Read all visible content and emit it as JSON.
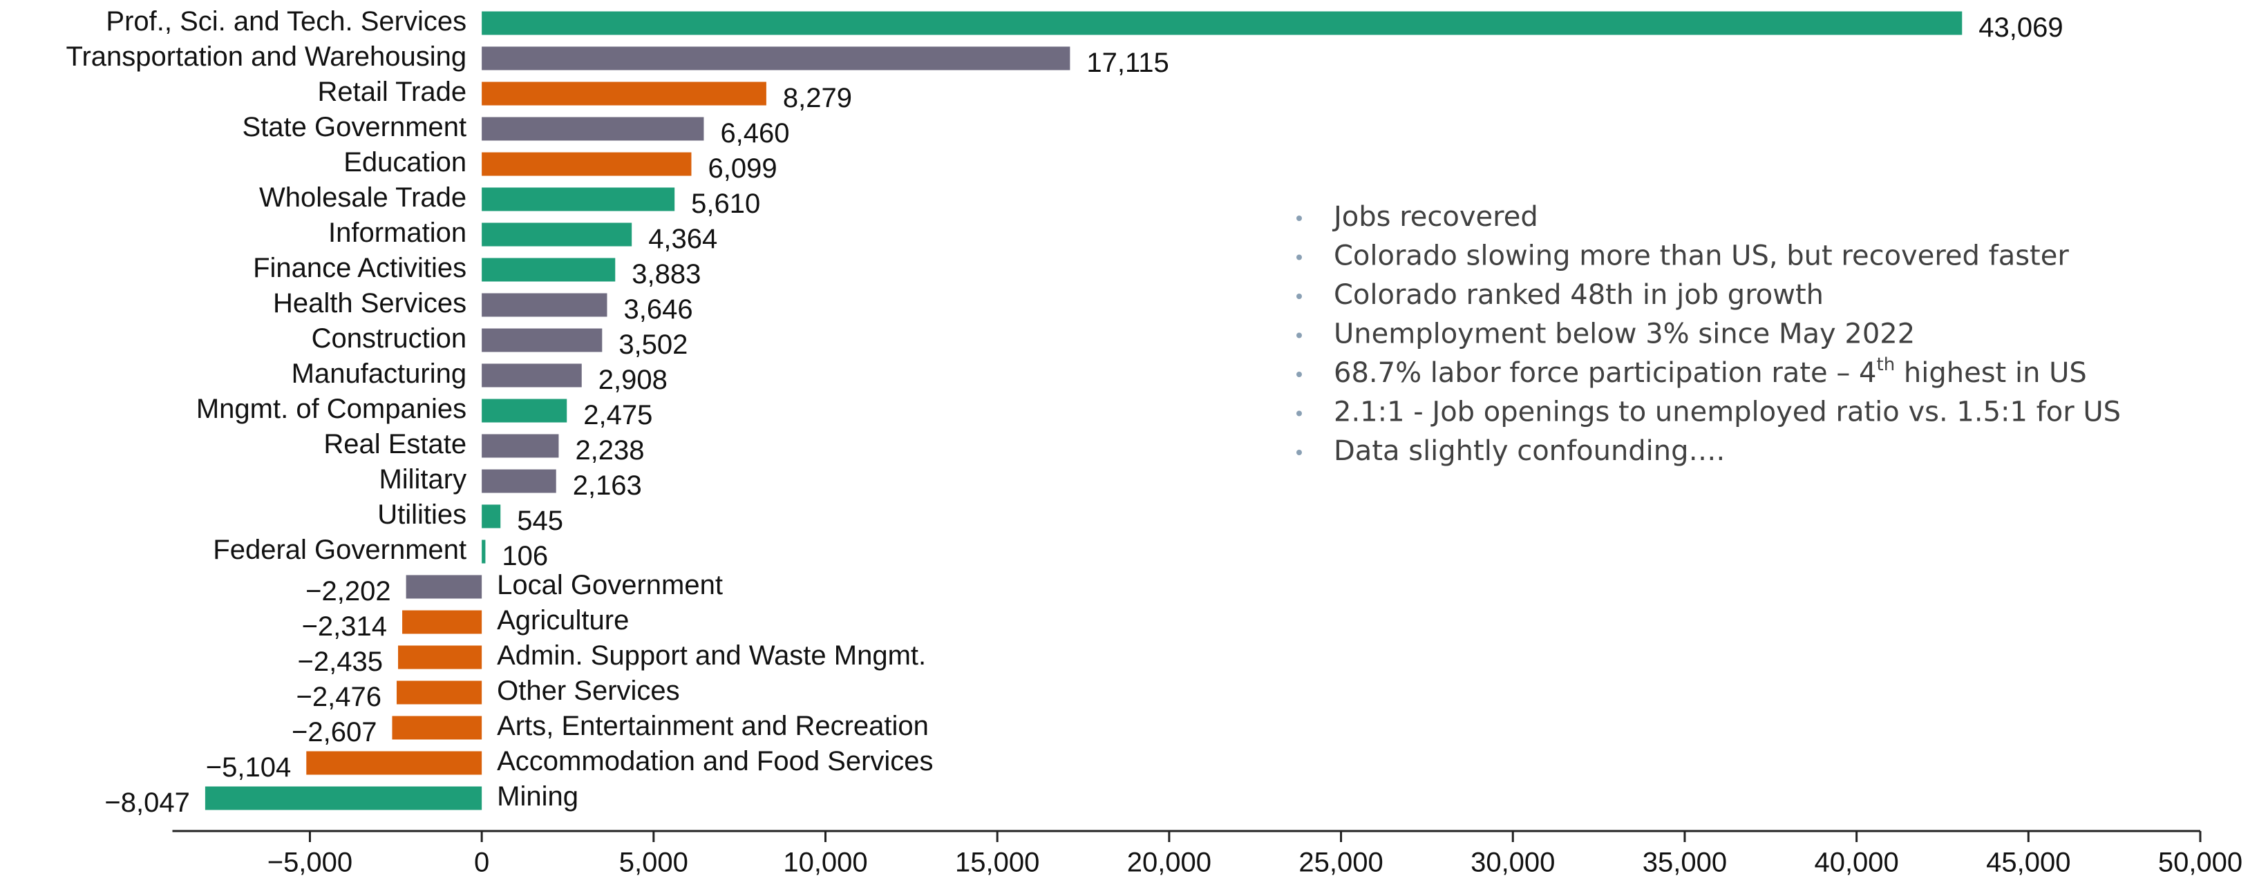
{
  "chart_data": {
    "type": "barh",
    "categories": [
      "Prof., Sci. and Tech. Services",
      "Transportation and Warehousing",
      "Retail Trade",
      "State Government",
      "Education",
      "Wholesale Trade",
      "Information",
      "Finance Activities",
      "Health Services",
      "Construction",
      "Manufacturing",
      "Mngmt. of Companies",
      "Real Estate",
      "Military",
      "Utilities",
      "Federal Government",
      "Local Government",
      "Agriculture",
      "Admin. Support and Waste Mngmt.",
      "Other Services",
      "Arts, Entertainment and Recreation",
      "Accommodation and Food Services",
      "Mining"
    ],
    "values": [
      43069,
      17115,
      8279,
      6460,
      6099,
      5610,
      4364,
      3883,
      3646,
      3502,
      2908,
      2475,
      2238,
      2163,
      545,
      106,
      -2202,
      -2314,
      -2435,
      -2476,
      -2607,
      -5104,
      -8047
    ],
    "value_labels": [
      "43,069",
      "17,115",
      "8,279",
      "6,460",
      "6,099",
      "5,610",
      "4,364",
      "3,883",
      "3,646",
      "3,502",
      "2,908",
      "2,475",
      "2,238",
      "2,163",
      "545",
      "106",
      "−2,202",
      "−2,314",
      "−2,435",
      "−2,476",
      "−2,607",
      "−5,104",
      "−8,047"
    ],
    "colors": [
      "#1e9e78",
      "#6f6b80",
      "#d9600a",
      "#6f6b80",
      "#d9600a",
      "#1e9e78",
      "#1e9e78",
      "#1e9e78",
      "#6f6b80",
      "#6f6b80",
      "#6f6b80",
      "#1e9e78",
      "#6f6b80",
      "#6f6b80",
      "#1e9e78",
      "#1e9e78",
      "#6f6b80",
      "#d9600a",
      "#d9600a",
      "#d9600a",
      "#d9600a",
      "#d9600a",
      "#1e9e78"
    ],
    "xlim": [
      -9000,
      50000
    ],
    "xticks": [
      {
        "value": -5000,
        "label": "−5,000"
      },
      0,
      {
        "value": 5000,
        "label": "5,000"
      },
      {
        "value": 10000,
        "label": "10,000"
      },
      {
        "value": 15000,
        "label": "15,000"
      },
      {
        "value": 20000,
        "label": "20,000"
      },
      {
        "value": 25000,
        "label": "25,000"
      },
      {
        "value": 30000,
        "label": "30,000"
      },
      {
        "value": 35000,
        "label": "35,000"
      },
      {
        "value": 40000,
        "label": "40,000"
      },
      {
        "value": 45000,
        "label": "45,000"
      },
      {
        "value": 50000,
        "label": "50,000"
      }
    ],
    "grid": false,
    "bullets": [
      "Jobs recovered",
      "Colorado slowing more than US, but recovered faster",
      "Colorado ranked 48th in job growth",
      "Unemployment below 3% since May 2022",
      {
        "before": "68.7% labor force participation rate – 4",
        "sup": "th",
        "after": " highest in US"
      },
      "2.1:1 - Job openings to unemployed ratio vs. 1.5:1 for US",
      "Data slightly confounding…."
    ]
  }
}
